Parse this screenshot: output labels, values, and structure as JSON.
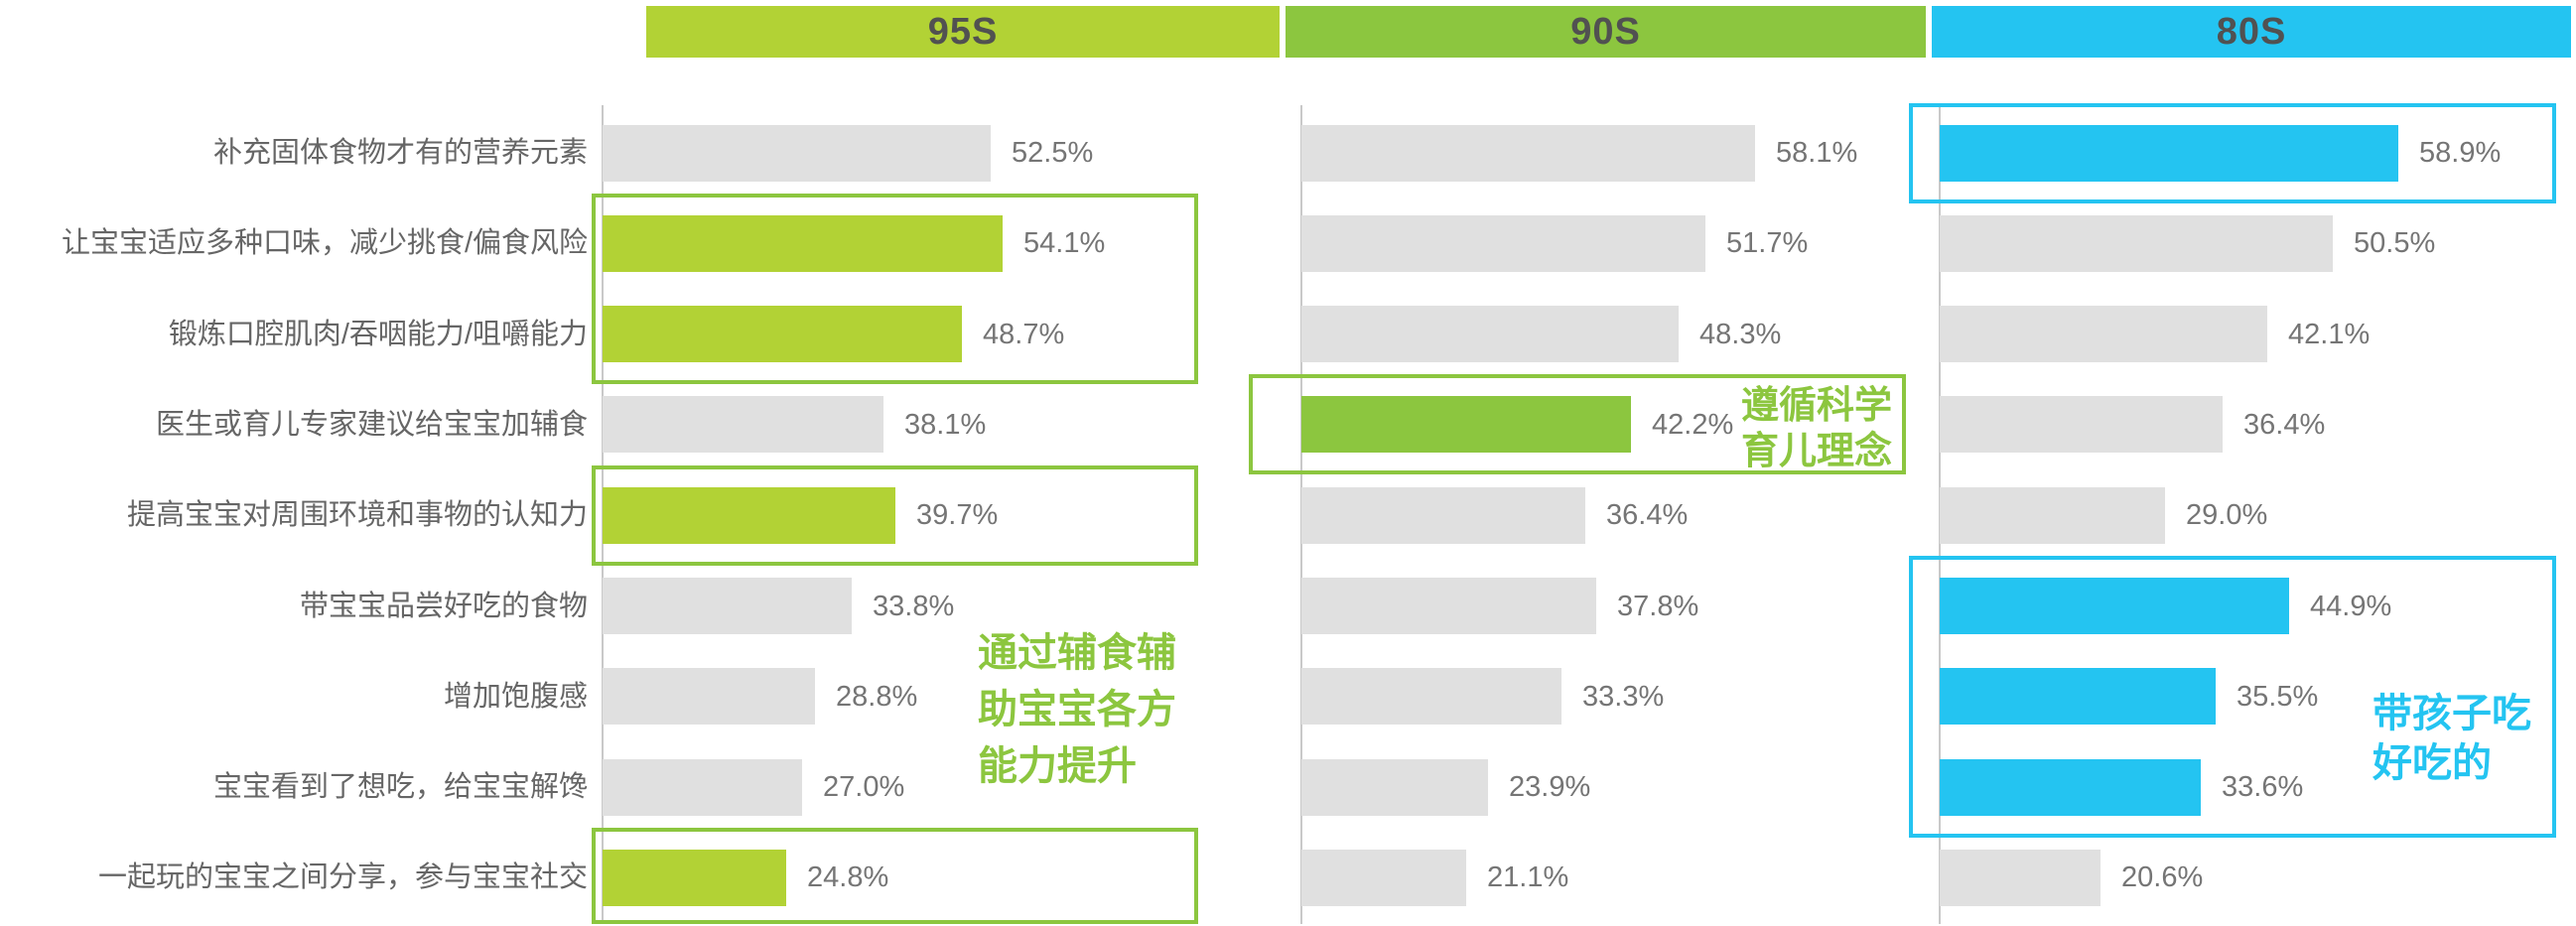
{
  "columns": [
    {
      "id": "95s",
      "label": "95S",
      "header_bg": "#b2d235",
      "accent": "#b2d235",
      "box_border": "#8cc63f"
    },
    {
      "id": "90s",
      "label": "90S",
      "header_bg": "#8cc63f",
      "accent": "#8cc63f",
      "box_border": "#8cc63f"
    },
    {
      "id": "80s",
      "label": "80S",
      "header_bg": "#24c4f1",
      "accent": "#24c4f1",
      "box_border": "#24c4f1"
    }
  ],
  "chart_data": {
    "type": "bar",
    "orientation": "horizontal",
    "unit": "%",
    "grid": false,
    "legend": "none",
    "xlim": [
      0,
      65
    ],
    "categories": [
      "补充固体食物才有的营养元素",
      "让宝宝适应多种口味，减少挑食/偏食风险",
      "锻炼口腔肌肉/吞咽能力/咀嚼能力",
      "医生或育儿专家建议给宝宝加辅食",
      "提高宝宝对周围环境和事物的认知力",
      "带宝宝品尝好吃的食物",
      "增加饱腹感",
      "宝宝看到了想吃，给宝宝解馋",
      "一起玩的宝宝之间分享，参与宝宝社交"
    ],
    "series": [
      {
        "name": "95S",
        "values": [
          52.5,
          54.1,
          48.7,
          38.1,
          39.7,
          33.8,
          28.8,
          27.0,
          24.8
        ],
        "highlighted_rows": [
          2,
          3,
          5,
          9
        ],
        "highlight_boxes": [
          [
            2,
            3
          ],
          [
            5,
            5
          ],
          [
            9,
            9
          ]
        ]
      },
      {
        "name": "90S",
        "values": [
          58.1,
          51.7,
          48.3,
          42.2,
          36.4,
          37.8,
          33.3,
          23.9,
          21.1
        ],
        "highlighted_rows": [
          4
        ],
        "highlight_boxes": [
          [
            4,
            4
          ]
        ]
      },
      {
        "name": "80S",
        "values": [
          58.9,
          50.5,
          42.1,
          36.4,
          29.0,
          44.9,
          35.5,
          33.6,
          20.6
        ],
        "highlighted_rows": [
          1,
          6,
          7,
          8
        ],
        "highlight_boxes": [
          [
            1,
            1
          ],
          [
            6,
            8
          ]
        ]
      }
    ],
    "annotations": [
      {
        "column": "95S",
        "text": "通过辅食辅\n助宝宝各方\n能力提升",
        "color": "#8cc63f"
      },
      {
        "column": "90S",
        "text": "遵循科学\n育儿理念",
        "color": "#8cc63f"
      },
      {
        "column": "80S",
        "text": "带孩子吃\n好吃的",
        "color": "#24c4f1"
      }
    ],
    "value_suffix": "%",
    "default_bar_color": "#e0e0e0",
    "value_label_color": "#757575",
    "category_label_color": "#666666"
  }
}
